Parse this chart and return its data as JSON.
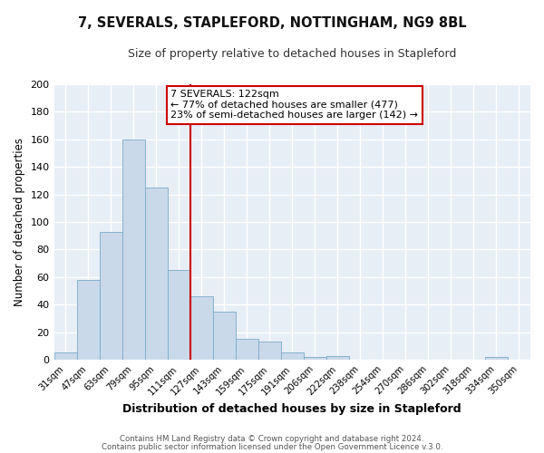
{
  "title": "7, SEVERALS, STAPLEFORD, NOTTINGHAM, NG9 8BL",
  "subtitle": "Size of property relative to detached houses in Stapleford",
  "xlabel": "Distribution of detached houses by size in Stapleford",
  "ylabel": "Number of detached properties",
  "bar_labels": [
    "31sqm",
    "47sqm",
    "63sqm",
    "79sqm",
    "95sqm",
    "111sqm",
    "127sqm",
    "143sqm",
    "159sqm",
    "175sqm",
    "191sqm",
    "206sqm",
    "222sqm",
    "238sqm",
    "254sqm",
    "270sqm",
    "286sqm",
    "302sqm",
    "318sqm",
    "334sqm",
    "350sqm"
  ],
  "bar_heights": [
    5,
    58,
    93,
    160,
    125,
    65,
    46,
    35,
    15,
    13,
    5,
    2,
    3,
    0,
    0,
    0,
    0,
    0,
    0,
    2,
    0
  ],
  "bar_color": "#c9d9ea",
  "bar_edge_color": "#7aaac8",
  "vline_color": "#cc0000",
  "annotation_title": "7 SEVERALS: 122sqm",
  "annotation_line1": "← 77% of detached houses are smaller (477)",
  "annotation_line2": "23% of semi-detached houses are larger (142) →",
  "annotation_box_color": "#ffffff",
  "annotation_box_edge": "#cc0000",
  "ylim": [
    0,
    200
  ],
  "yticks": [
    0,
    20,
    40,
    60,
    80,
    100,
    120,
    140,
    160,
    180,
    200
  ],
  "footer1": "Contains HM Land Registry data © Crown copyright and database right 2024.",
  "footer2": "Contains public sector information licensed under the Open Government Licence v.3.0.",
  "bg_color": "#ffffff",
  "plot_bg_color": "#e8eef5",
  "grid_color": "#ffffff"
}
